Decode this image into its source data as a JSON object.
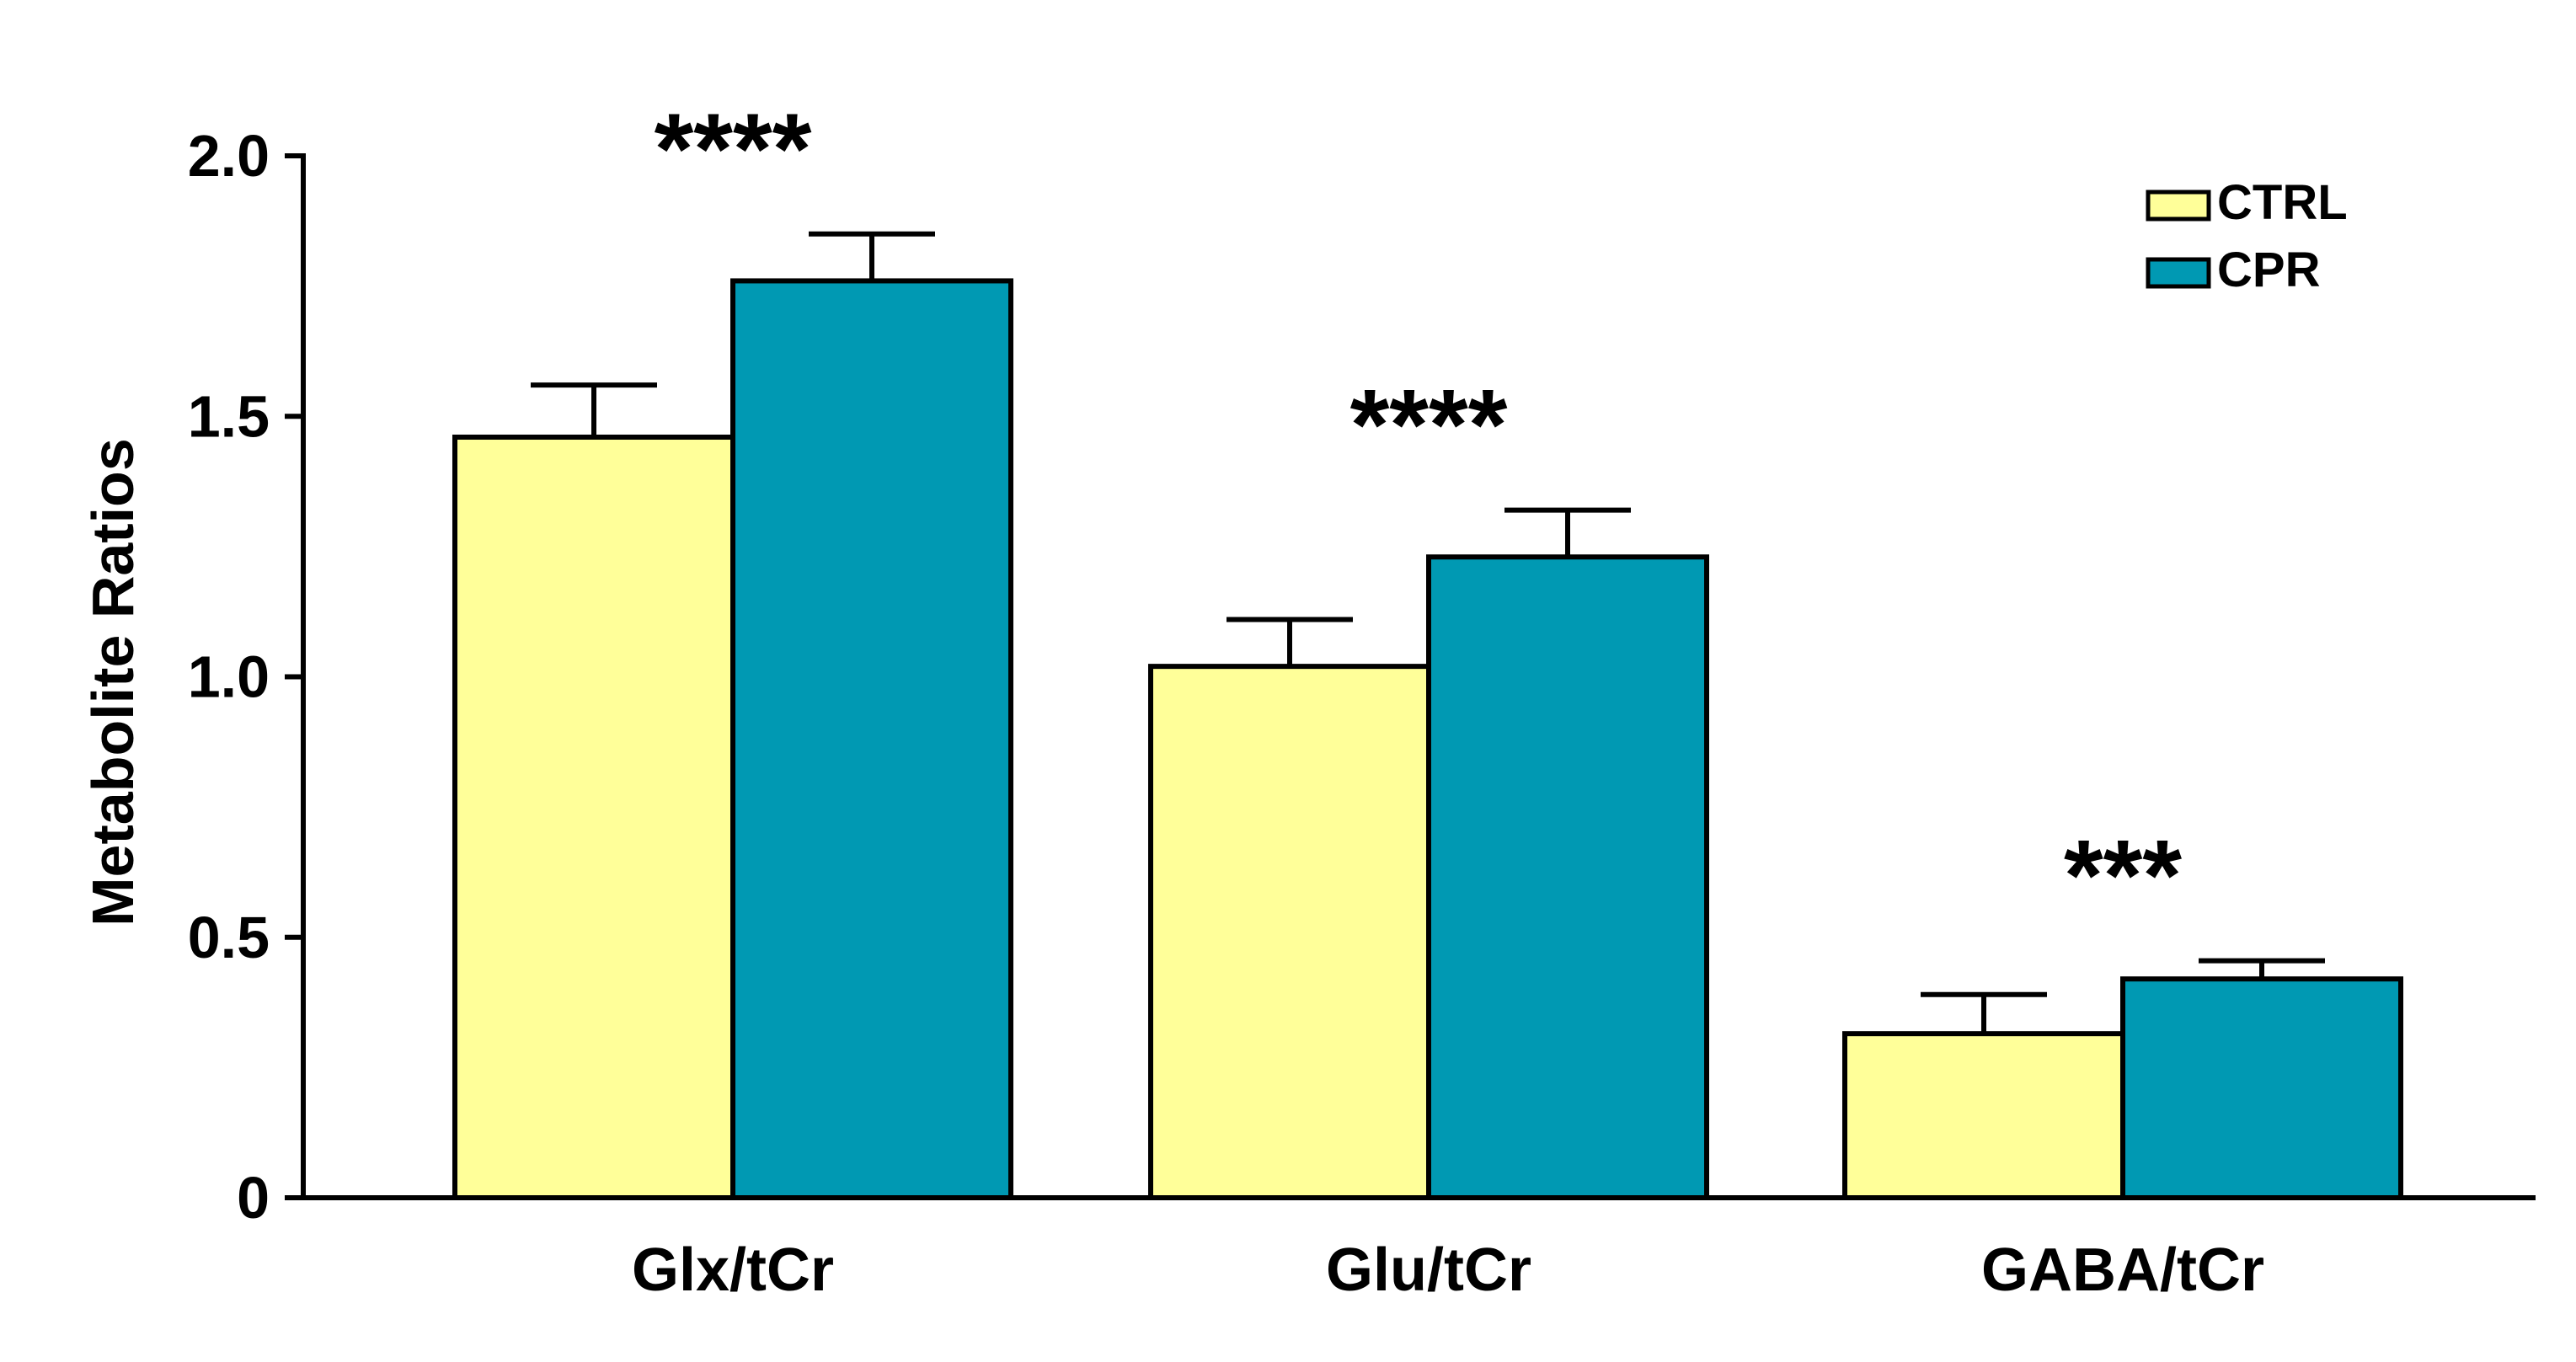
{
  "chart_data": {
    "type": "bar",
    "title": "",
    "xlabel": "",
    "ylabel": "Metabolite Ratios",
    "ylim": [
      0,
      2.0
    ],
    "yticks": [
      0,
      0.5,
      1.0,
      1.5,
      2.0
    ],
    "ytick_labels": [
      "0",
      "0.5",
      "1.0",
      "1.5",
      "2.0"
    ],
    "categories": [
      "Glx/tCr",
      "Glu/tCr",
      "GABA/tCr"
    ],
    "series": [
      {
        "name": "CTRL",
        "color": "#FFFF99",
        "values": [
          1.46,
          1.02,
          0.315
        ],
        "errors": [
          0.1,
          0.09,
          0.075
        ]
      },
      {
        "name": "CPR",
        "color": "#0099B3",
        "values": [
          1.76,
          1.23,
          0.42
        ],
        "errors": [
          0.09,
          0.09,
          0.035
        ]
      }
    ],
    "annotations": [
      "****",
      "****",
      "***"
    ],
    "legend_position": "top-right",
    "grid": false
  }
}
